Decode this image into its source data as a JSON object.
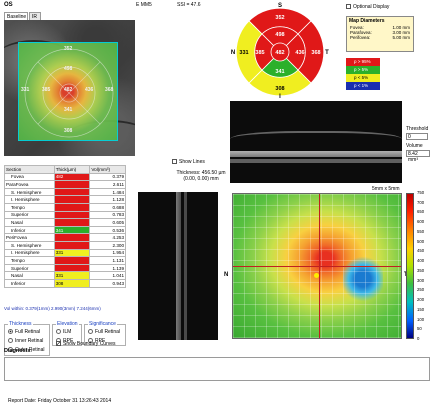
{
  "header": {
    "eye": "OS",
    "scan_mode": "E MM5",
    "ssi": "SSI = 47.6"
  },
  "tabs": [
    "Baseline",
    "IR"
  ],
  "fundus_values": {
    "top": "352",
    "inner_top": "498",
    "left_outer": "331",
    "left_inner": "385",
    "center": "482",
    "right_inner": "436",
    "right_outer": "368",
    "inner_bottom": "341",
    "bottom": "308"
  },
  "sector": {
    "label_s": "S",
    "label_n": "N",
    "label_t": "T",
    "label_i": "I",
    "outer_top": "352",
    "inner_top": "498",
    "outer_left": "331",
    "inner_left": "385",
    "center": "482",
    "inner_right": "436",
    "outer_right": "368",
    "inner_bottom": "341",
    "outer_bottom": "308",
    "colors": {
      "red": "#e01818",
      "yellow": "#f0ee20",
      "green": "#2bb02b"
    }
  },
  "optional_display": "Optional Display",
  "map_diameters": {
    "title": "Map Diameters",
    "rows": [
      {
        "label": "Fovea:",
        "value": "1.00 mm"
      },
      {
        "label": "Parafovea:",
        "value": "3.00 mm"
      },
      {
        "label": "Perifovea:",
        "value": "5.00 mm"
      }
    ]
  },
  "legend": [
    {
      "label": "p > 95%",
      "color": "#e01818"
    },
    {
      "label": "p > 5%",
      "color": "#2bb02b"
    },
    {
      "label": "p < 5%",
      "color": "#f0ee20"
    },
    {
      "label": "p < 1%",
      "color": "#1a2fb0"
    }
  ],
  "threshold": {
    "label": "Threshold",
    "value": "0",
    "volume_label": "Volume",
    "volume_value": "8.42 mm³"
  },
  "table": {
    "headers": [
      "Section",
      "Thick(µm)",
      "Vol(mm³)"
    ],
    "rows": [
      {
        "section": "Fovea",
        "thick": "482",
        "vol": "0.379",
        "color": "red",
        "indent": 1
      },
      {
        "section": "ParaFovea",
        "thick": "",
        "vol": "2.611",
        "color": "red",
        "indent": 0
      },
      {
        "section": "S. Hemisphere",
        "thick": "",
        "vol": "1.484",
        "color": "red",
        "indent": 1
      },
      {
        "section": "I. Hemisphere",
        "thick": "",
        "vol": "1.128",
        "color": "red",
        "indent": 1
      },
      {
        "section": "Tempo",
        "thick": "",
        "vol": "0.688",
        "color": "red",
        "indent": 1
      },
      {
        "section": "Superior",
        "thick": "",
        "vol": "0.783",
        "color": "red",
        "indent": 1
      },
      {
        "section": "Nasal",
        "thick": "",
        "vol": "0.605",
        "color": "red",
        "indent": 1
      },
      {
        "section": "Inferior",
        "thick": "341",
        "vol": "0.536",
        "color": "green",
        "indent": 1
      },
      {
        "section": "PeriFovea",
        "thick": "",
        "vol": "4.253",
        "color": "red",
        "indent": 0
      },
      {
        "section": "S. Hemisphere",
        "thick": "",
        "vol": "2.300",
        "color": "red",
        "indent": 1
      },
      {
        "section": "I. Hemisphere",
        "thick": "331",
        "vol": "1.954",
        "color": "yellow",
        "indent": 1
      },
      {
        "section": "Tempo",
        "thick": "",
        "vol": "1.131",
        "color": "red",
        "indent": 1
      },
      {
        "section": "Superior",
        "thick": "",
        "vol": "1.139",
        "color": "red",
        "indent": 1
      },
      {
        "section": "Nasal",
        "thick": "331",
        "vol": "1.041",
        "color": "yellow",
        "indent": 1
      },
      {
        "section": "Inferior",
        "thick": "308",
        "vol": "0.943",
        "color": "yellow",
        "indent": 1
      }
    ]
  },
  "vol_within": "Vol within: 0.379(1mm) 2.990(3mm) 7.244(6mm)",
  "show_lines": "Show Lines",
  "thickness_info": {
    "line1": "Thickness: 456.50 µm",
    "line2": "(0.00, 0.00) mm"
  },
  "bigmap": {
    "label": "5mm x 5mm",
    "n": "N",
    "t": "T"
  },
  "scale_labels": [
    "750",
    "700",
    "650",
    "600",
    "550",
    "500",
    "450",
    "400",
    "350",
    "300",
    "250",
    "200",
    "150",
    "100",
    "50",
    "0"
  ],
  "groups": {
    "thickness": {
      "title": "Thickness",
      "options": [
        "Full Retinal",
        "Inner Retinal",
        "Outer Retinal"
      ],
      "selected": 0
    },
    "elevation": {
      "title": "Elevation",
      "options": [
        "ILM",
        "RPE"
      ],
      "selected": -1
    },
    "significance": {
      "title": "Significance",
      "options": [
        "Full Retinal",
        "RPE"
      ],
      "selected": -1
    }
  },
  "show_boundary": "Show Boundary Curves",
  "diagnosis_label": "Diagnosis:",
  "report_date": "Report Date: Friday October 31 13:26:43 2014"
}
